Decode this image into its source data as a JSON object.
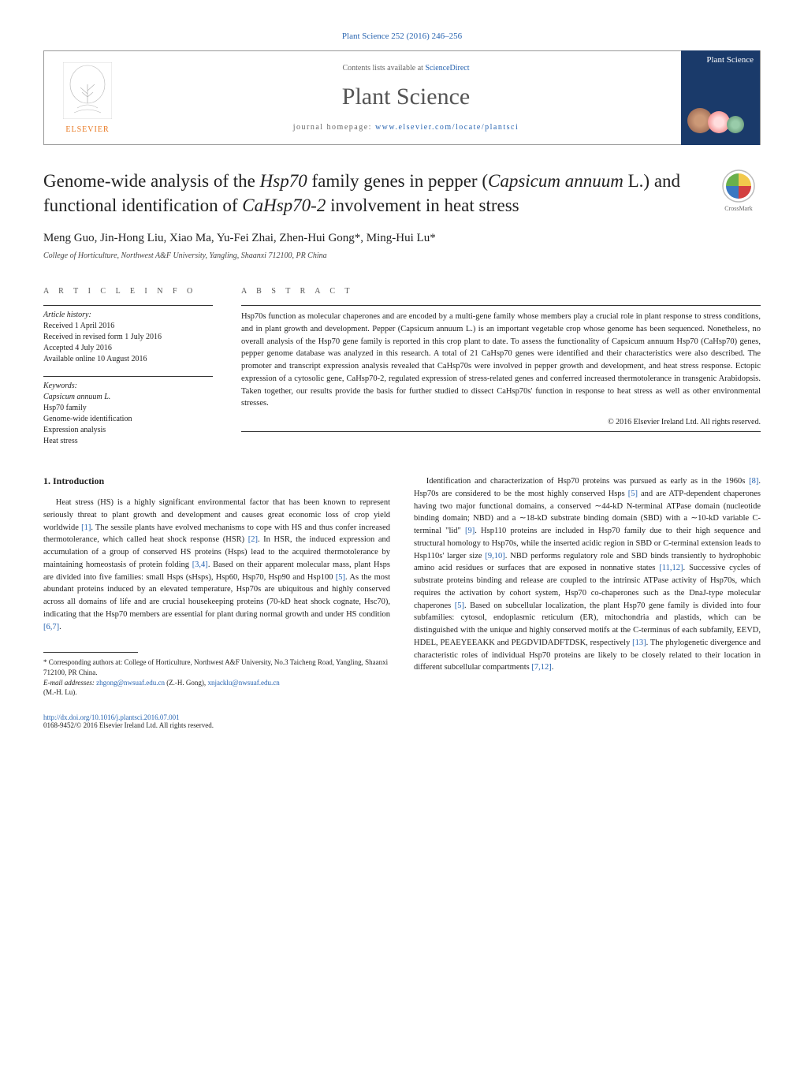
{
  "header": {
    "top_ref": "Plant Science 252 (2016) 246–256",
    "contents_line_pre": "Contents lists available at ",
    "contents_link": "ScienceDirect",
    "journal_name": "Plant Science",
    "homepage_pre": "journal homepage: ",
    "homepage_link": "www.elsevier.com/locate/plantsci",
    "elsevier": "ELSEVIER",
    "cover_title": "Plant Science",
    "crossmark": "CrossMark"
  },
  "title": {
    "html_parts": [
      "Genome-wide analysis of the ",
      "Hsp70",
      " family genes in pepper (",
      "Capsicum annuum",
      " L.) and functional identification of ",
      "CaHsp70-2",
      " involvement in heat stress"
    ]
  },
  "authors": "Meng Guo, Jin-Hong Liu, Xiao Ma, Yu-Fei Zhai, Zhen-Hui Gong*, Ming-Hui Lu*",
  "affiliation": "College of Horticulture, Northwest A&F University, Yangling, Shaanxi 712100, PR China",
  "article_info": {
    "heading": "a r t i c l e   i n f o",
    "history_label": "Article history:",
    "history": [
      "Received 1 April 2016",
      "Received in revised form 1 July 2016",
      "Accepted 4 July 2016",
      "Available online 10 August 2016"
    ],
    "keywords_label": "Keywords:",
    "keywords": [
      "Capsicum annuum L.",
      "Hsp70 family",
      "Genome-wide identification",
      "Expression analysis",
      "Heat stress"
    ]
  },
  "abstract": {
    "heading": "a b s t r a c t",
    "text": "Hsp70s function as molecular chaperones and are encoded by a multi-gene family whose members play a crucial role in plant response to stress conditions, and in plant growth and development. Pepper (Capsicum annuum L.) is an important vegetable crop whose genome has been sequenced. Nonetheless, no overall analysis of the Hsp70 gene family is reported in this crop plant to date. To assess the functionality of Capsicum annuum Hsp70 (CaHsp70) genes, pepper genome database was analyzed in this research. A total of 21 CaHsp70 genes were identified and their characteristics were also described. The promoter and transcript expression analysis revealed that CaHsp70s were involved in pepper growth and development, and heat stress response. Ectopic expression of a cytosolic gene, CaHsp70-2, regulated expression of stress-related genes and conferred increased thermotolerance in transgenic Arabidopsis. Taken together, our results provide the basis for further studied to dissect CaHsp70s' function in response to heat stress as well as other environmental stresses.",
    "copyright": "© 2016 Elsevier Ireland Ltd. All rights reserved."
  },
  "body": {
    "intro_head": "1. Introduction",
    "col1_p1": "Heat stress (HS) is a highly significant environmental factor that has been known to represent seriously threat to plant growth and development and causes great economic loss of crop yield worldwide [1]. The sessile plants have evolved mechanisms to cope with HS and thus confer increased thermotolerance, which called heat shock response (HSR) [2]. In HSR, the induced expression and accumulation of a group of conserved HS proteins (Hsps) lead to the acquired thermotolerance by maintaining homeostasis of protein folding [3,4]. Based on their apparent molecular mass, plant Hsps are divided into five families: small Hsps (sHsps), Hsp60, Hsp70, Hsp90 and Hsp100 [5]. As the most abundant proteins induced by an elevated temperature, Hsp70s are ubiquitous and highly conserved across all domains of life and are crucial housekeeping proteins (70-kD heat shock cognate, Hsc70), indicating that the Hsp70 members are essential for plant during normal growth and under HS condition [6,7].",
    "col2_p1": "Identification and characterization of Hsp70 proteins was pursued as early as in the 1960s [8]. Hsp70s are considered to be the most highly conserved Hsps [5] and are ATP-dependent chaperones having two major functional domains, a conserved ∼44-kD N-terminal ATPase domain (nucleotide binding domain; NBD) and a ∼18-kD substrate binding domain (SBD) with a ∼10-kD variable C-terminal \"lid\" [9]. Hsp110 proteins are included in Hsp70 family due to their high sequence and structural homology to Hsp70s, while the inserted acidic region in SBD or C-terminal extension leads to Hsp110s' larger size [9,10]. NBD performs regulatory role and SBD binds transiently to hydrophobic amino acid residues or surfaces that are exposed in nonnative states [11,12]. Successive cycles of substrate proteins binding and release are coupled to the intrinsic ATPase activity of Hsp70s, which requires the activation by cohort system, Hsp70 co-chaperones such as the DnaJ-type molecular chaperones [5]. Based on subcellular localization, the plant Hsp70 gene family is divided into four subfamilies: cytosol, endoplasmic reticulum (ER), mitochondria and plastids, which can be distinguished with the unique and highly conserved motifs at the C-terminus of each subfamily, EEVD, HDEL, PEAEYEEAKK and PEGDVIDADFTDSK, respectively [13]. The phylogenetic divergence and characteristic roles of individual Hsp70 proteins are likely to be closely related to their location in different subcellular compartments [7,12]."
  },
  "footnotes": {
    "corr": "* Corresponding authors at: College of Horticulture, Northwest A&F University, No.3 Taicheng Road, Yangling, Shaanxi 712100, PR China.",
    "email_label": "E-mail addresses: ",
    "email1": "zhgong@nwsuaf.edu.cn",
    "email1_who": " (Z.-H. Gong), ",
    "email2": "xnjacklu@nwsuaf.edu.cn",
    "email2_who": " (M.-H. Lu)."
  },
  "footer": {
    "doi": "http://dx.doi.org/10.1016/j.plantsci.2016.07.001",
    "issn_line": "0168-9452/© 2016 Elsevier Ireland Ltd. All rights reserved."
  },
  "colors": {
    "link": "#2864b0",
    "elsevier_orange": "#e8771f",
    "cover_bg": "#1a3a6a",
    "crossmark_red": "#d34040",
    "crossmark_yellow": "#f2c94c",
    "crossmark_blue": "#3a78c2",
    "crossmark_green": "#6ab04c"
  }
}
